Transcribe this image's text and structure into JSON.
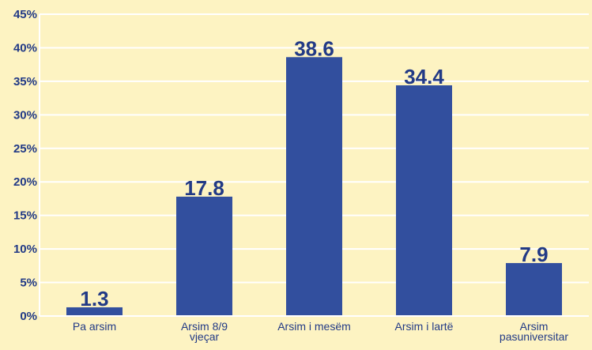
{
  "chart_data": {
    "type": "bar",
    "title": "",
    "xlabel": "",
    "ylabel": "",
    "categories": [
      [
        "Pa arsim"
      ],
      [
        "Arsim 8/9",
        "vjeçar"
      ],
      [
        "Arsim i mesëm"
      ],
      [
        "Arsim i lartë"
      ],
      [
        "Arsim",
        "pasuniversitar"
      ]
    ],
    "values": [
      1.3,
      17.8,
      38.6,
      34.4,
      7.9
    ],
    "data_labels": [
      "1.3",
      "17.8",
      "38.6",
      "34.4",
      "7.9"
    ],
    "ylim": [
      0,
      45
    ],
    "yticks": [
      0,
      5,
      10,
      15,
      20,
      25,
      30,
      35,
      40,
      45
    ],
    "ytick_labels": [
      "0%",
      "5%",
      "10%",
      "15%",
      "20%",
      "25%",
      "30%",
      "35%",
      "40%",
      "45%"
    ],
    "grid": true,
    "legend": "none",
    "colors": {
      "background": "#fdf3c2",
      "bar": "#324f9e",
      "grid": "#ffffff",
      "text": "#223a86"
    }
  }
}
